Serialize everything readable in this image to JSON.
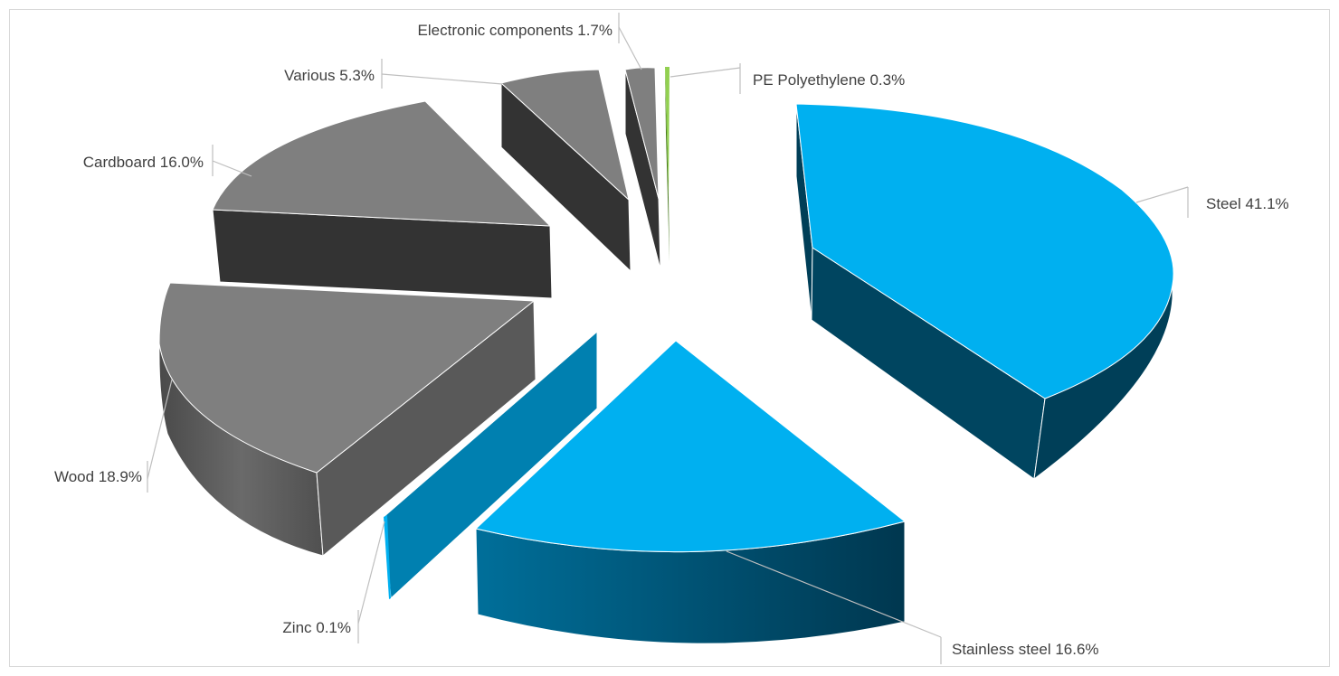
{
  "chart_data": {
    "type": "pie",
    "title": "",
    "style": "3d-exploded",
    "slices": [
      {
        "name": "Steel",
        "value": 41.1,
        "label": "Steel 41.1%",
        "color": "#00b0f0",
        "side_color": "#004560"
      },
      {
        "name": "Stainless steel",
        "value": 16.6,
        "label": "Stainless steel 16.6%",
        "color": "#00b0f0",
        "side_color": "#005a7e"
      },
      {
        "name": "Zinc",
        "value": 0.1,
        "label": "Zinc 0.1%",
        "color": "#00b0f0",
        "side_color": "#0080b0"
      },
      {
        "name": "Wood",
        "value": 18.9,
        "label": "Wood 18.9%",
        "color": "#7f7f7f",
        "side_color": "#595959"
      },
      {
        "name": "Cardboard",
        "value": 16.0,
        "label": "Cardboard 16.0%",
        "color": "#7f7f7f",
        "side_color": "#333333"
      },
      {
        "name": "Various",
        "value": 5.3,
        "label": "Various 5.3%",
        "color": "#7f7f7f",
        "side_color": "#333333"
      },
      {
        "name": "Electronic components",
        "value": 1.7,
        "label": "Electronic components 1.7%",
        "color": "#7f7f7f",
        "side_color": "#333333"
      },
      {
        "name": "PE Polyethylene",
        "value": 0.3,
        "label": "PE Polyethylene 0.3%",
        "color": "#92d050",
        "side_color": "#4a7a20"
      }
    ],
    "legend": "none",
    "data_labels": "outside-with-leader-lines"
  }
}
